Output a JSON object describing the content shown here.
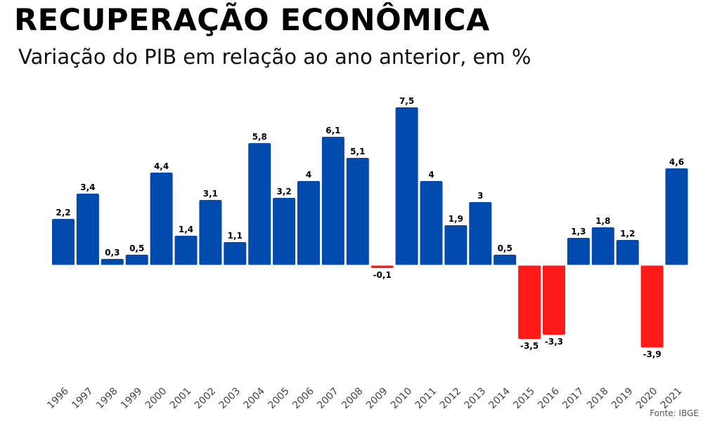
{
  "chart_data": {
    "type": "bar",
    "title": "RECUPERAÇÃO ECONÔMICA",
    "subtitle": "Variação do PIB em relação ao ano anterior, em %",
    "categories": [
      "1996",
      "1997",
      "1998",
      "1999",
      "2000",
      "2001",
      "2002",
      "2003",
      "2004",
      "2005",
      "2006",
      "2007",
      "2008",
      "2009",
      "2010",
      "2011",
      "2012",
      "2013",
      "2014",
      "2015",
      "2016",
      "2017",
      "2018",
      "2019",
      "2020",
      "2021"
    ],
    "values": [
      2.2,
      3.4,
      0.3,
      0.5,
      4.4,
      1.4,
      3.1,
      1.1,
      5.8,
      3.2,
      4,
      6.1,
      5.1,
      -0.1,
      7.5,
      4,
      1.9,
      3,
      0.5,
      -3.5,
      -3.3,
      1.3,
      1.8,
      1.2,
      -3.9,
      4.6
    ],
    "value_labels": [
      "2,2",
      "3,4",
      "0,3",
      "0,5",
      "4,4",
      "1,4",
      "3,1",
      "1,1",
      "5,8",
      "3,2",
      "4",
      "6,1",
      "5,1",
      "-0,1",
      "7,5",
      "4",
      "1,9",
      "3",
      "0,5",
      "-3,5",
      "-3,3",
      "1,3",
      "1,8",
      "1,2",
      "-3,9",
      "4,6"
    ],
    "colors": {
      "positive": "#004AAD",
      "negative": "#FF1A1A"
    },
    "xlabel": "",
    "ylabel": "",
    "grid": false,
    "legend": "none"
  },
  "source": "Fonte: IBGE"
}
